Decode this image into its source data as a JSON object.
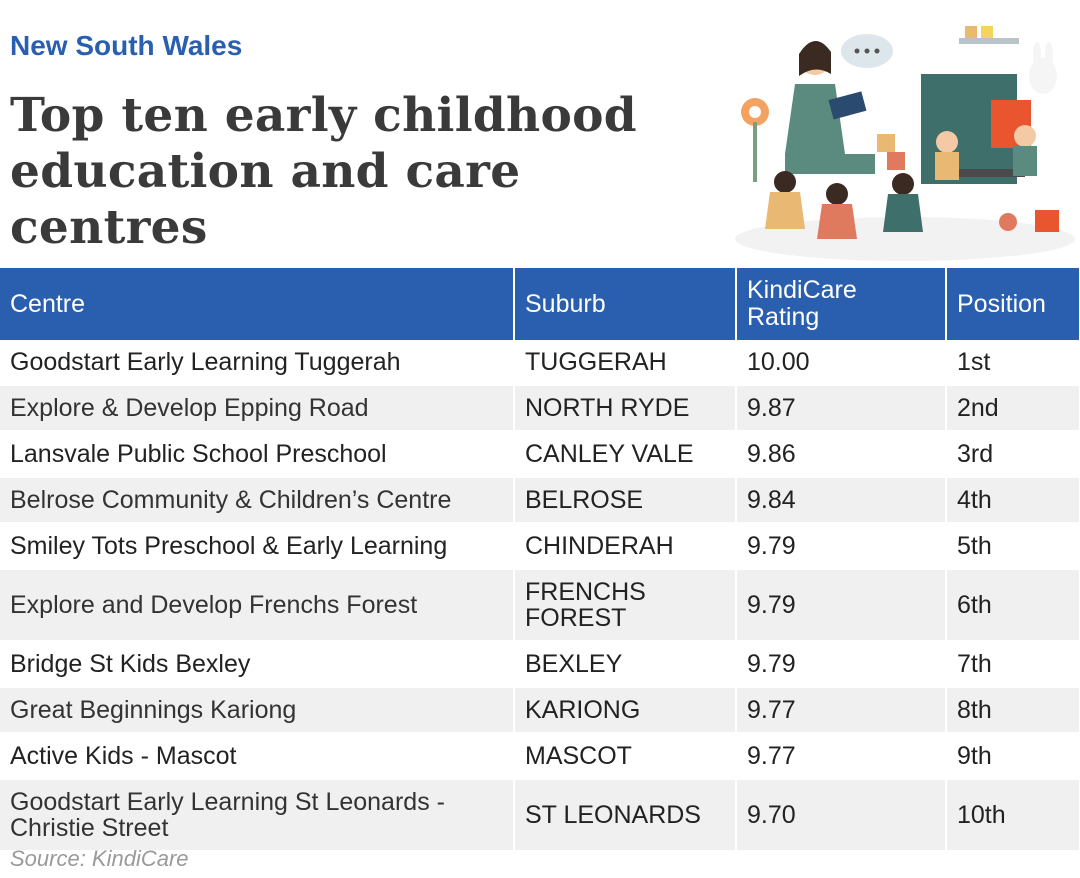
{
  "header": {
    "region": "New South Wales",
    "title": "Top ten early childhood education and care centres"
  },
  "chart_data": {
    "type": "table",
    "columns": [
      "Centre",
      "Suburb",
      "KindiCare Rating",
      "Position"
    ],
    "rows": [
      [
        "Goodstart Early Learning Tuggerah",
        "TUGGERAH",
        "10.00",
        "1st"
      ],
      [
        "Explore & Develop Epping Road",
        "NORTH RYDE",
        "9.87",
        "2nd"
      ],
      [
        "Lansvale Public School Preschool",
        "CANLEY VALE",
        "9.86",
        "3rd"
      ],
      [
        "Belrose Community & Children’s Centre",
        "BELROSE",
        "9.84",
        "4th"
      ],
      [
        "Smiley Tots Preschool & Early Learning",
        "CHINDERAH",
        "9.79",
        "5th"
      ],
      [
        "Explore and Develop Frenchs Forest",
        "FRENCHS FOREST",
        "9.79",
        "6th"
      ],
      [
        "Bridge St Kids Bexley",
        "BEXLEY",
        "9.79",
        "7th"
      ],
      [
        "Great Beginnings Kariong",
        "KARIONG",
        "9.77",
        "8th"
      ],
      [
        "Active Kids - Mascot",
        "MASCOT",
        "9.77",
        "9th"
      ],
      [
        "Goodstart Early Learning St Leonards - Christie Street",
        "ST LEONARDS",
        "9.70",
        "10th"
      ]
    ]
  },
  "footer": {
    "source": "Source: KindiCare"
  },
  "colors": {
    "accent": "#2a5fb0",
    "stripe": "#f0f0f0",
    "title": "#3a3a3a"
  },
  "illustration": {
    "icon": "teacher-reading-to-children-illustration"
  }
}
